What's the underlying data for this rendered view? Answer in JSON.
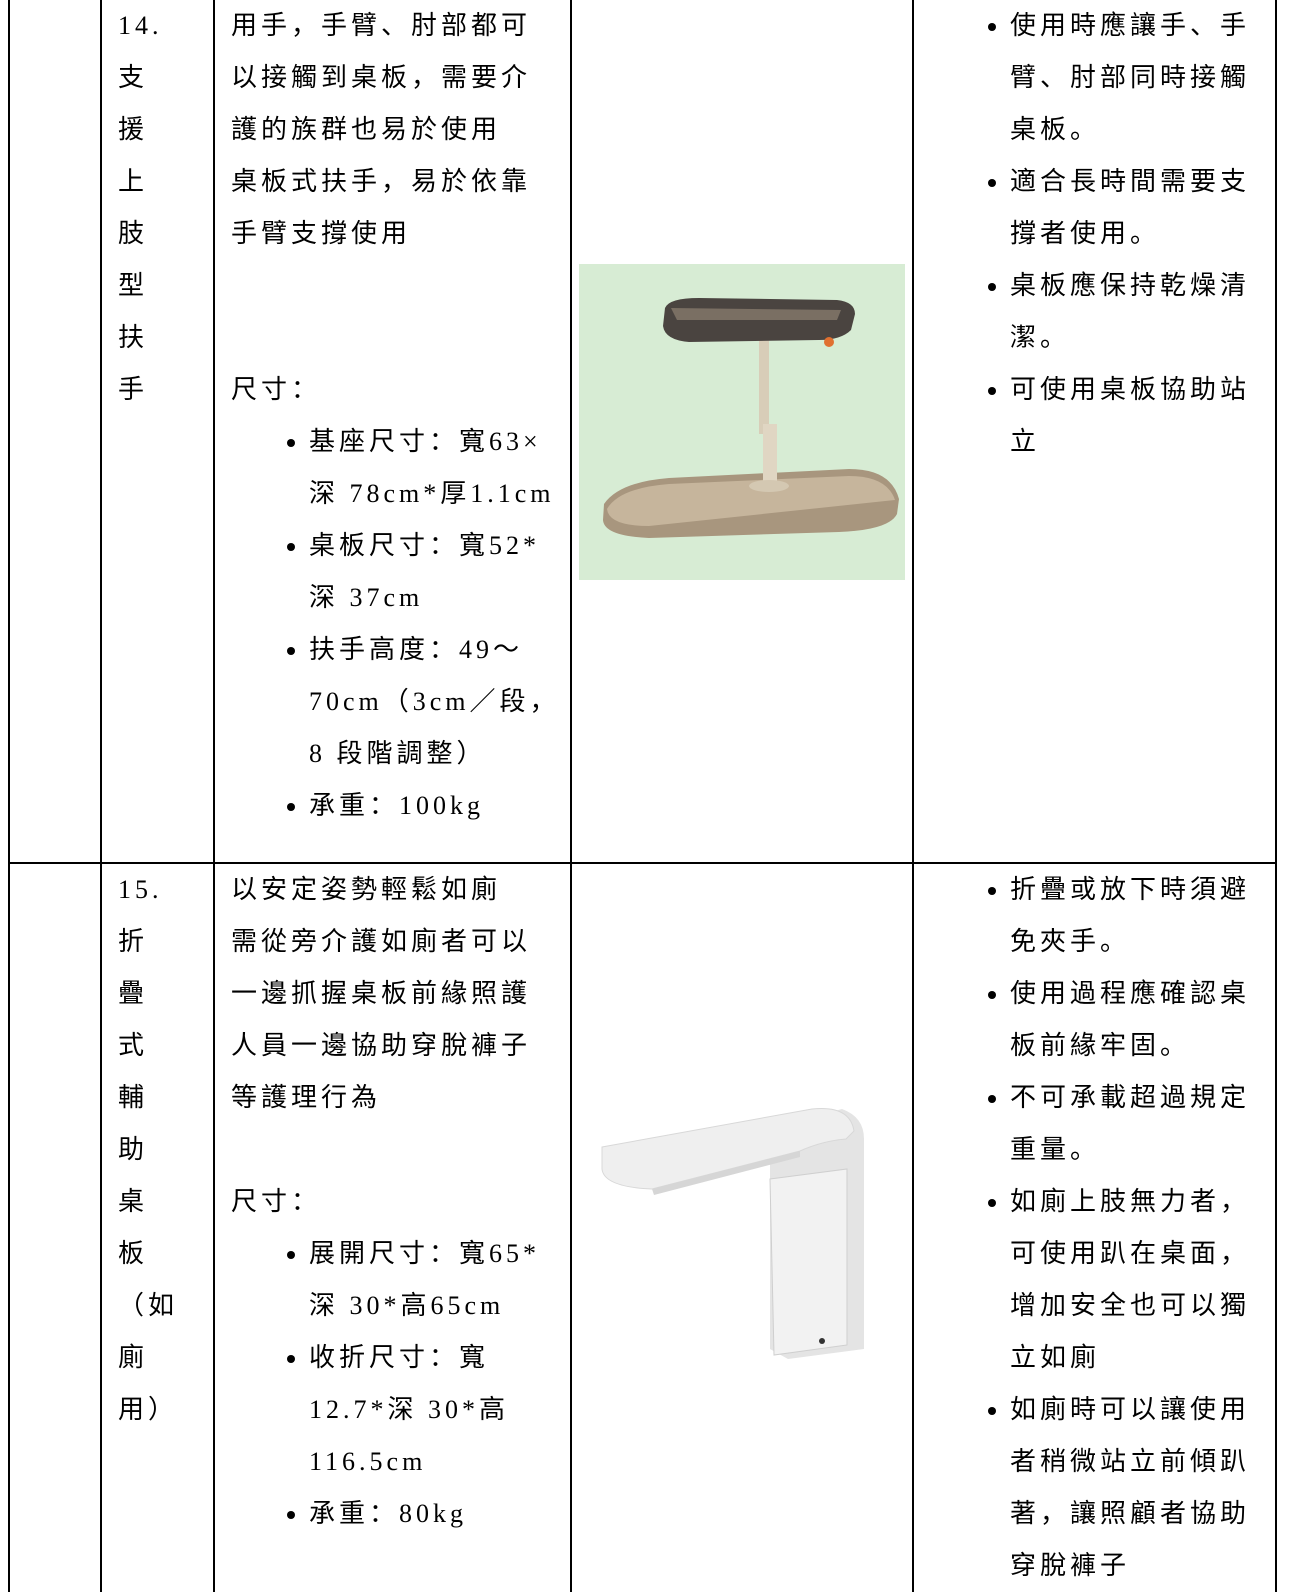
{
  "table": {
    "rows": [
      {
        "number": "14.",
        "name": "支援上肢型扶手",
        "description": [
          "用手，手臂、肘部都可以接觸到桌板，需要介護的族群也易於使用",
          "桌板式扶手，易於依靠手臂支撐使用"
        ],
        "size_label": "尺寸：",
        "sizes": [
          "基座尺寸：寬63×深 78cm*厚1.1cm",
          "桌板尺寸：寬52*深 37cm",
          "扶手高度：49～70cm（3cm／段，8 段階調整）",
          "承重：100kg"
        ],
        "notes": [
          "使用時應讓手、手臂、肘部同時接觸桌板。",
          "適合長時間需要支撐者使用。",
          "桌板應保持乾燥清潔。",
          "可使用桌板協助站立"
        ]
      },
      {
        "number": "15.",
        "name": "折疊式輔助桌板（如廁用）",
        "description": [
          "以安定姿勢輕鬆如廁",
          "需從旁介護如廁者可以一邊抓握桌板前緣照護人員一邊協助穿脫褲子等護理行為"
        ],
        "size_label": "尺寸：",
        "sizes": [
          "展開尺寸：寬65*深 30*高65cm",
          "收折尺寸：寬12.7*深 30*高116.5cm",
          "承重：80kg"
        ],
        "notes": [
          "折疊或放下時須避免夾手。",
          "使用過程應確認桌板前緣牢固。",
          "不可承載超過規定重量。",
          "如廁上肢無力者，可使用趴在桌面，增加安全也可以獨立如廁",
          "如廁時可以讓使用者稍微站立前傾趴著，讓照顧者協助穿脫褲子"
        ]
      }
    ]
  }
}
